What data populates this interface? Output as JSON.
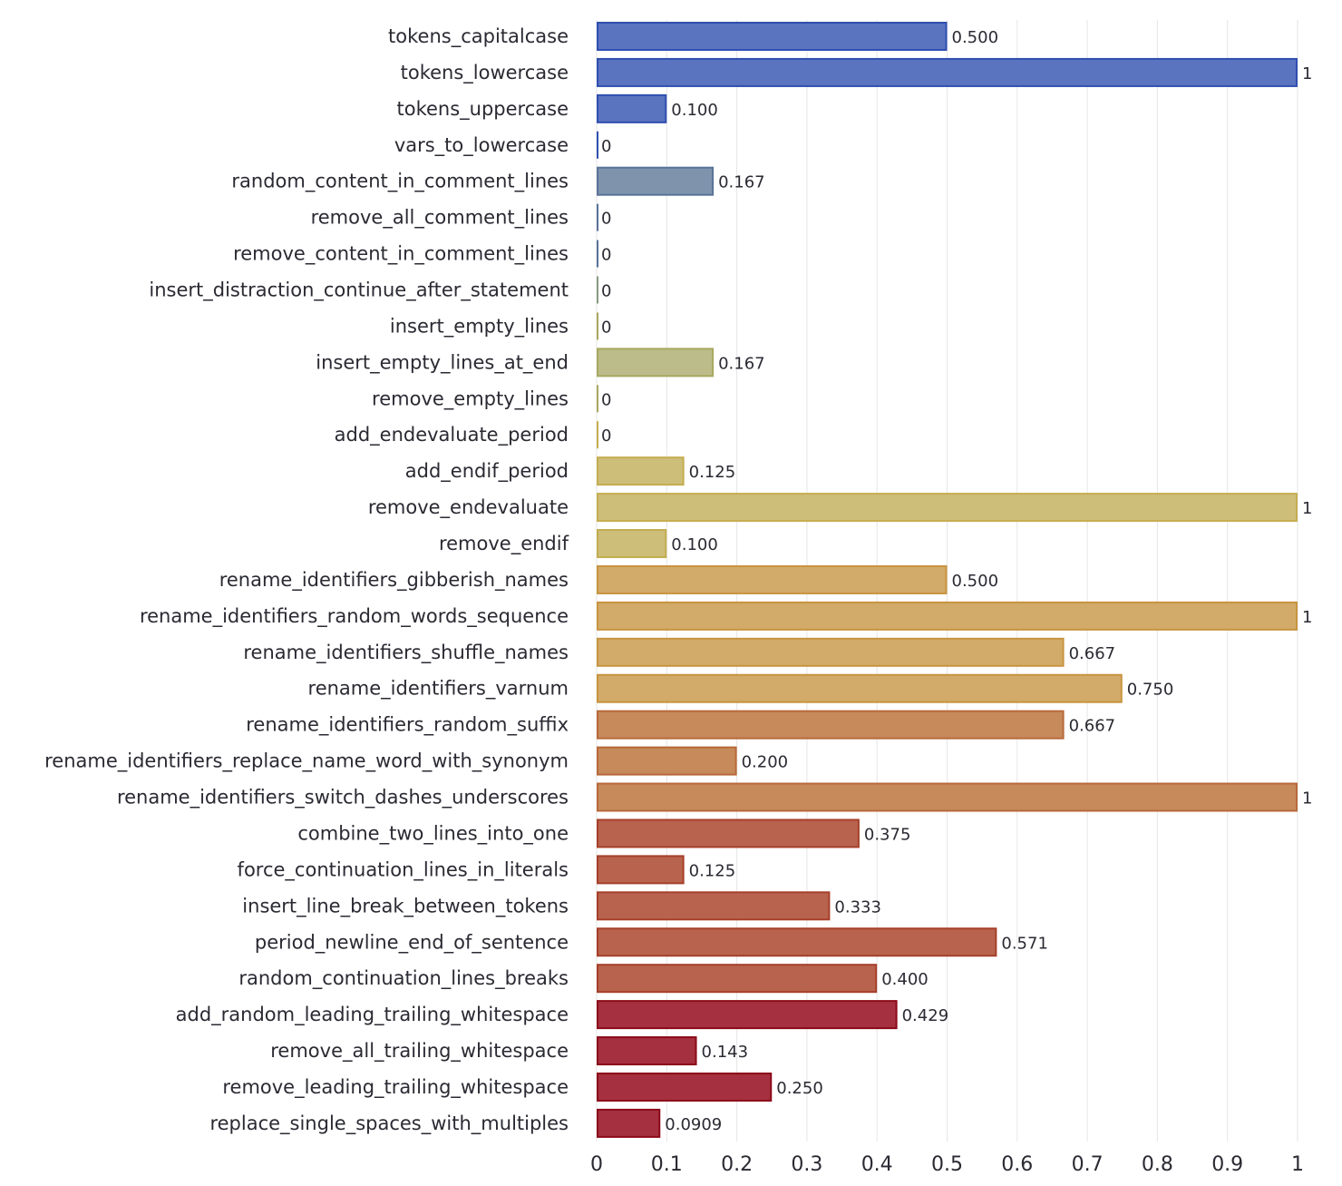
{
  "chart_data": {
    "type": "bar",
    "orientation": "horizontal",
    "xlim": [
      0,
      1
    ],
    "x_ticks": [
      "0",
      "0.1",
      "0.2",
      "0.3",
      "0.4",
      "0.5",
      "0.6",
      "0.7",
      "0.8",
      "0.9",
      "1"
    ],
    "grid": true,
    "categories": [
      "tokens_capitalcase",
      "tokens_lowercase",
      "tokens_uppercase",
      "vars_to_lowercase",
      "random_content_in_comment_lines",
      "remove_all_comment_lines",
      "remove_content_in_comment_lines",
      "insert_distraction_continue_after_statement",
      "insert_empty_lines",
      "insert_empty_lines_at_end",
      "remove_empty_lines",
      "add_endevaluate_period",
      "add_endif_period",
      "remove_endevaluate",
      "remove_endif",
      "rename_identifiers_gibberish_names",
      "rename_identifiers_random_words_sequence",
      "rename_identifiers_shuffle_names",
      "rename_identifiers_varnum",
      "rename_identifiers_random_suffix",
      "rename_identifiers_replace_name_word_with_synonym",
      "rename_identifiers_switch_dashes_underscores",
      "combine_two_lines_into_one",
      "force_continuation_lines_in_literals",
      "insert_line_break_between_tokens",
      "period_newline_end_of_sentence",
      "random_continuation_lines_breaks",
      "add_random_leading_trailing_whitespace",
      "remove_all_trailing_whitespace",
      "remove_leading_trailing_whitespace",
      "replace_single_spaces_with_multiples"
    ],
    "values": [
      0.5,
      1,
      0.1,
      0,
      0.167,
      0,
      0,
      0,
      0,
      0.167,
      0,
      0,
      0.125,
      1,
      0.1,
      0.5,
      1,
      0.667,
      0.75,
      0.667,
      0.2,
      1,
      0.375,
      0.125,
      0.333,
      0.571,
      0.4,
      0.429,
      0.143,
      0.25,
      0.0909
    ],
    "value_labels": [
      "0.500",
      "1",
      "0.100",
      "0",
      "0.167",
      "0",
      "0",
      "0",
      "0",
      "0.167",
      "0",
      "0",
      "0.125",
      "1",
      "0.100",
      "0.500",
      "1",
      "0.667",
      "0.750",
      "0.667",
      "0.200",
      "1",
      "0.375",
      "0.125",
      "0.333",
      "0.571",
      "0.400",
      "0.429",
      "0.143",
      "0.250",
      "0.0909"
    ],
    "group_colors": [
      {
        "fill": "#5b74c0",
        "stroke": "#2f4fb0",
        "count": 4
      },
      {
        "fill": "#7f93ad",
        "stroke": "#5a7398",
        "count": 3
      },
      {
        "fill": "#a5ad90",
        "stroke": "#8a9a80",
        "count": 1
      },
      {
        "fill": "#bcbc8a",
        "stroke": "#a8a860",
        "count": 3
      },
      {
        "fill": "#cdbf7a",
        "stroke": "#c4ad50",
        "count": 4
      },
      {
        "fill": "#d2ab6a",
        "stroke": "#c8943f",
        "count": 4
      },
      {
        "fill": "#c68a5b",
        "stroke": "#b8693a",
        "count": 3
      },
      {
        "fill": "#b8634e",
        "stroke": "#a63f2a",
        "count": 5
      },
      {
        "fill": "#a5303f",
        "stroke": "#8c0a1a",
        "count": 4
      }
    ],
    "grid_color": "#e6e6e6"
  }
}
